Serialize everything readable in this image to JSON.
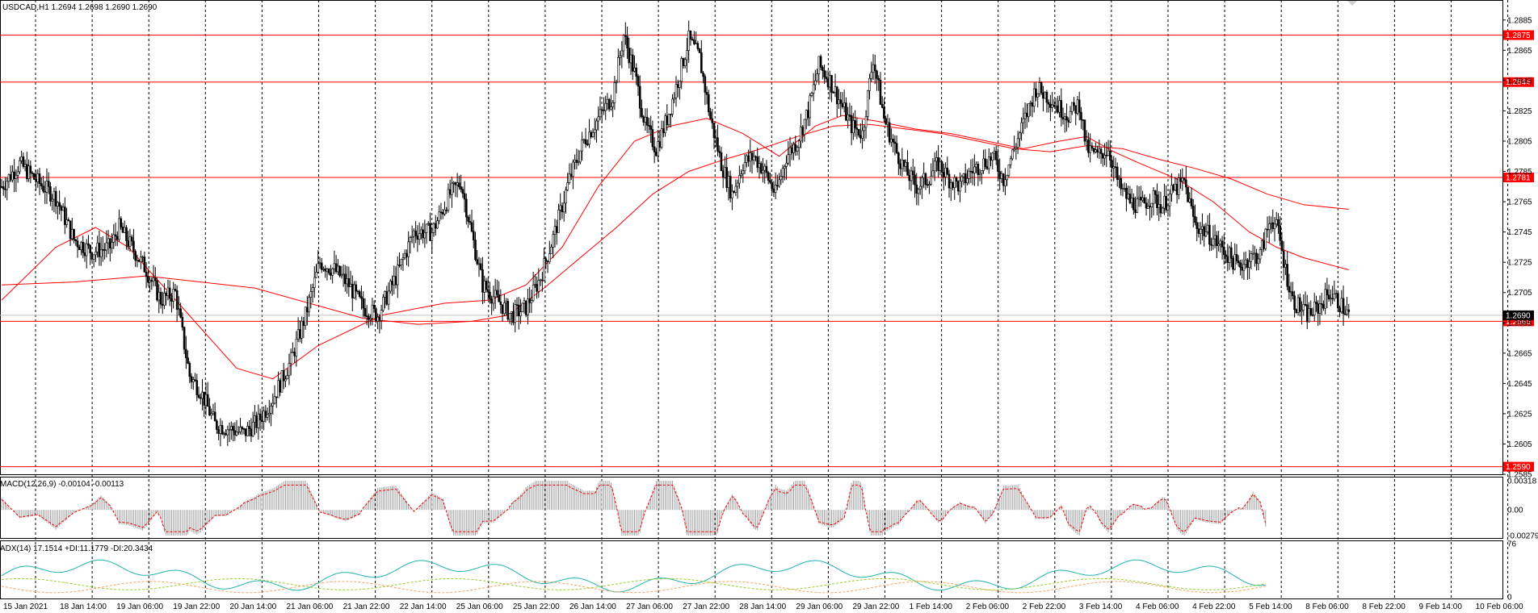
{
  "header": {
    "symbol_info": "USDCAD,H1  1.2694 1.2698 1.2690 1.2690",
    "macd_info": "MACD(12,26,9) -0.00104 -0.00113",
    "adx_info": "ADX(14) 17.1514 +DI:11.1779 -DI:20.3434"
  },
  "colors": {
    "candle": "#000000",
    "level_line": "#ff0000",
    "ma_line": "#ff0000",
    "macd_hist": "#a0a0a0",
    "macd_signal": "#ff0000",
    "adx_main": "#20b2aa",
    "di_plus": "#9acd32",
    "di_minus": "#f4a460",
    "grid": "#000000"
  },
  "chart_data": [
    {
      "type": "candlestick",
      "symbol": "USDCAD",
      "timeframe": "H1",
      "ylim": [
        1.2585,
        1.2895
      ],
      "y_ticks": [
        "1.2885",
        "1.2865",
        "1.2845",
        "1.2825",
        "1.2805",
        "1.2785",
        "1.2765",
        "1.2745",
        "1.2725",
        "1.2705",
        "1.2685",
        "1.2665",
        "1.2645",
        "1.2625",
        "1.2605",
        "1.2585"
      ],
      "x_ticks": [
        "15 Jan 2021",
        "18 Jan 14:00",
        "19 Jan 06:00",
        "19 Jan 22:00",
        "20 Jan 14:00",
        "21 Jan 06:00",
        "21 Jan 22:00",
        "22 Jan 14:00",
        "25 Jan 06:00",
        "25 Jan 22:00",
        "26 Jan 14:00",
        "27 Jan 06:00",
        "27 Jan 22:00",
        "28 Jan 14:00",
        "29 Jan 06:00",
        "29 Jan 22:00",
        "1 Feb 14:00",
        "2 Feb 06:00",
        "2 Feb 22:00",
        "3 Feb 14:00",
        "4 Feb 06:00",
        "4 Feb 22:00",
        "5 Feb 14:00",
        "8 Feb 06:00",
        "8 Feb 22:00",
        "9 Feb 14:00",
        "10 Feb 06:00"
      ],
      "levels": [
        {
          "label": "1.2875",
          "value": 1.2875
        },
        {
          "label": "1.2844",
          "value": 1.2844
        },
        {
          "label": "1.2781",
          "value": 1.2781
        },
        {
          "label": "1.2686",
          "value": 1.2686
        },
        {
          "label": "1.2590",
          "value": 1.259
        }
      ],
      "current_price": {
        "label": "1.2690",
        "value": 1.269
      },
      "price_path": [
        [
          0,
          1.2775
        ],
        [
          10,
          1.279
        ],
        [
          20,
          1.2778
        ],
        [
          30,
          1.2768
        ],
        [
          40,
          1.274
        ],
        [
          50,
          1.2732
        ],
        [
          60,
          1.2735
        ],
        [
          65,
          1.2748
        ],
        [
          72,
          1.2735
        ],
        [
          80,
          1.272
        ],
        [
          88,
          1.27
        ],
        [
          96,
          1.2705
        ],
        [
          104,
          1.265
        ],
        [
          110,
          1.264
        ],
        [
          118,
          1.2618
        ],
        [
          126,
          1.2615
        ],
        [
          134,
          1.2612
        ],
        [
          142,
          1.262
        ],
        [
          150,
          1.2635
        ],
        [
          160,
          1.266
        ],
        [
          168,
          1.269
        ],
        [
          176,
          1.2725
        ],
        [
          184,
          1.272
        ],
        [
          192,
          1.271
        ],
        [
          200,
          1.2695
        ],
        [
          208,
          1.269
        ],
        [
          218,
          1.2715
        ],
        [
          228,
          1.2745
        ],
        [
          238,
          1.2745
        ],
        [
          248,
          1.277
        ],
        [
          254,
          1.2778
        ],
        [
          258,
          1.2755
        ],
        [
          266,
          1.271
        ],
        [
          274,
          1.27
        ],
        [
          282,
          1.269
        ],
        [
          290,
          1.2695
        ],
        [
          298,
          1.2715
        ],
        [
          306,
          1.2745
        ],
        [
          314,
          1.278
        ],
        [
          322,
          1.2805
        ],
        [
          330,
          1.282
        ],
        [
          338,
          1.2835
        ],
        [
          344,
          1.2875
        ],
        [
          350,
          1.285
        ],
        [
          356,
          1.2815
        ],
        [
          362,
          1.28
        ],
        [
          368,
          1.282
        ],
        [
          374,
          1.2845
        ],
        [
          380,
          1.2872
        ],
        [
          386,
          1.286
        ],
        [
          392,
          1.282
        ],
        [
          398,
          1.279
        ],
        [
          404,
          1.277
        ],
        [
          410,
          1.279
        ],
        [
          416,
          1.2795
        ],
        [
          422,
          1.2785
        ],
        [
          428,
          1.277
        ],
        [
          434,
          1.2795
        ],
        [
          440,
          1.2805
        ],
        [
          446,
          1.2825
        ],
        [
          452,
          1.2855
        ],
        [
          458,
          1.2845
        ],
        [
          464,
          1.283
        ],
        [
          470,
          1.2815
        ],
        [
          476,
          1.281
        ],
        [
          482,
          1.286
        ],
        [
          488,
          1.282
        ],
        [
          494,
          1.28
        ],
        [
          500,
          1.2785
        ],
        [
          506,
          1.2775
        ],
        [
          512,
          1.278
        ],
        [
          518,
          1.279
        ],
        [
          524,
          1.278
        ],
        [
          530,
          1.2775
        ],
        [
          536,
          1.2785
        ],
        [
          542,
          1.279
        ],
        [
          548,
          1.2795
        ],
        [
          554,
          1.278
        ],
        [
          560,
          1.28
        ],
        [
          566,
          1.282
        ],
        [
          572,
          1.284
        ],
        [
          578,
          1.2835
        ],
        [
          584,
          1.2828
        ],
        [
          590,
          1.2822
        ],
        [
          596,
          1.283
        ],
        [
          600,
          1.28
        ],
        [
          606,
          1.2795
        ],
        [
          612,
          1.28
        ],
        [
          618,
          1.2775
        ],
        [
          624,
          1.2765
        ],
        [
          630,
          1.2762
        ],
        [
          636,
          1.2768
        ],
        [
          642,
          1.2762
        ],
        [
          648,
          1.2772
        ],
        [
          654,
          1.2778
        ],
        [
          660,
          1.275
        ],
        [
          666,
          1.2745
        ],
        [
          672,
          1.2738
        ],
        [
          678,
          1.273
        ],
        [
          684,
          1.2722
        ],
        [
          690,
          1.2728
        ],
        [
          696,
          1.273
        ],
        [
          702,
          1.2755
        ],
        [
          706,
          1.2745
        ],
        [
          710,
          1.272
        ],
        [
          714,
          1.27
        ],
        [
          718,
          1.2695
        ],
        [
          722,
          1.269
        ],
        [
          728,
          1.2695
        ],
        [
          734,
          1.2705
        ],
        [
          740,
          1.2698
        ],
        [
          745,
          1.269
        ]
      ],
      "moving_averages": [
        {
          "points": [
            [
              0,
              1.27
            ],
            [
              30,
              1.2735
            ],
            [
              52,
              1.2748
            ],
            [
              70,
              1.2735
            ],
            [
              100,
              1.2695
            ],
            [
              130,
              1.2655
            ],
            [
              150,
              1.2648
            ],
            [
              175,
              1.267
            ],
            [
              210,
              1.269
            ],
            [
              245,
              1.2698
            ],
            [
              270,
              1.27
            ],
            [
              290,
              1.271
            ],
            [
              310,
              1.2735
            ],
            [
              330,
              1.2775
            ],
            [
              350,
              1.2805
            ],
            [
              370,
              1.2815
            ],
            [
              390,
              1.282
            ],
            [
              410,
              1.281
            ],
            [
              430,
              1.2795
            ],
            [
              450,
              1.2815
            ],
            [
              465,
              1.2822
            ],
            [
              485,
              1.2818
            ],
            [
              505,
              1.2813
            ],
            [
              525,
              1.281
            ],
            [
              545,
              1.2805
            ],
            [
              565,
              1.28
            ],
            [
              585,
              1.2805
            ],
            [
              600,
              1.2808
            ],
            [
              615,
              1.2798
            ],
            [
              630,
              1.279
            ],
            [
              650,
              1.278
            ],
            [
              670,
              1.2765
            ],
            [
              690,
              1.2745
            ],
            [
              705,
              1.2735
            ],
            [
              720,
              1.2728
            ],
            [
              745,
              1.272
            ]
          ]
        },
        {
          "points": [
            [
              0,
              1.271
            ],
            [
              40,
              1.2712
            ],
            [
              80,
              1.2716
            ],
            [
              110,
              1.2712
            ],
            [
              140,
              1.2708
            ],
            [
              170,
              1.2698
            ],
            [
              200,
              1.2688
            ],
            [
              230,
              1.2684
            ],
            [
              260,
              1.2686
            ],
            [
              280,
              1.269
            ],
            [
              300,
              1.2708
            ],
            [
              320,
              1.2728
            ],
            [
              340,
              1.2748
            ],
            [
              360,
              1.277
            ],
            [
              380,
              1.2785
            ],
            [
              400,
              1.2793
            ],
            [
              420,
              1.28
            ],
            [
              440,
              1.2808
            ],
            [
              460,
              1.2815
            ],
            [
              480,
              1.2816
            ],
            [
              500,
              1.2813
            ],
            [
              520,
              1.281
            ],
            [
              540,
              1.2805
            ],
            [
              560,
              1.28
            ],
            [
              580,
              1.2798
            ],
            [
              600,
              1.2802
            ],
            [
              620,
              1.28
            ],
            [
              640,
              1.2793
            ],
            [
              660,
              1.2787
            ],
            [
              680,
              1.278
            ],
            [
              700,
              1.277
            ],
            [
              720,
              1.2763
            ],
            [
              745,
              1.276
            ]
          ]
        }
      ]
    },
    {
      "type": "histogram",
      "indicator": "MACD(12,26,9)",
      "values": {
        "main": -0.00104,
        "signal": -0.00113
      },
      "ylim": [
        -0.00279,
        0.00318
      ],
      "y_ticks": [
        "0.00318",
        "0.00",
        "-0.00279"
      ]
    },
    {
      "type": "line",
      "indicator": "ADX(14)",
      "values": {
        "adx": 17.1514,
        "plus_di": 11.1779,
        "minus_di": 20.3434
      },
      "ylim": [
        0,
        76
      ],
      "y_ticks": [
        "76",
        "0"
      ]
    }
  ]
}
